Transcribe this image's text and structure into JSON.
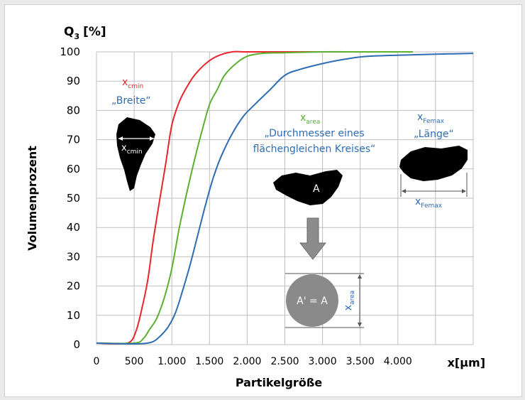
{
  "chart_data": {
    "type": "line",
    "ylabel": "Volumenprozent",
    "ylabel_top": "Q",
    "ylabel_top_sub": "3",
    "ylabel_top_unit": "[%]",
    "xlabel": "Partikelgröße",
    "xunit": "x[µm]",
    "xlim": [
      0,
      5000
    ],
    "ylim": [
      0,
      100
    ],
    "x_ticks": [
      0,
      500,
      1000,
      1500,
      2000,
      2500,
      3000,
      3500,
      4000
    ],
    "x_tick_labels": [
      "0",
      "500",
      "1.000",
      "1.500",
      "2.000",
      "2.500",
      "3.000",
      "3.500",
      "4.000"
    ],
    "y_ticks": [
      0,
      10,
      20,
      30,
      40,
      50,
      60,
      70,
      80,
      90,
      100
    ],
    "y_tick_labels": [
      "0",
      "10",
      "20",
      "30",
      "40",
      "50",
      "60",
      "70",
      "80",
      "90",
      "100"
    ],
    "grid": true,
    "series": [
      {
        "key": "xcmin",
        "color": "#e8262c",
        "points": [
          [
            0,
            0.5
          ],
          [
            300,
            0.3
          ],
          [
            450,
            1
          ],
          [
            530,
            5
          ],
          [
            600,
            12
          ],
          [
            680,
            22
          ],
          [
            750,
            35
          ],
          [
            830,
            48
          ],
          [
            920,
            62
          ],
          [
            1000,
            75
          ],
          [
            1100,
            83
          ],
          [
            1200,
            88
          ],
          [
            1300,
            92
          ],
          [
            1450,
            96
          ],
          [
            1600,
            98.5
          ],
          [
            1800,
            100
          ],
          [
            2000,
            100
          ],
          [
            2500,
            100
          ],
          [
            3000,
            100
          ],
          [
            3500,
            100
          ],
          [
            4200,
            100
          ]
        ]
      },
      {
        "key": "xarea",
        "color": "#5bb030",
        "points": [
          [
            0,
            0.5
          ],
          [
            500,
            0.5
          ],
          [
            620,
            2
          ],
          [
            700,
            5
          ],
          [
            800,
            9
          ],
          [
            900,
            16
          ],
          [
            1000,
            26
          ],
          [
            1100,
            40
          ],
          [
            1200,
            52
          ],
          [
            1300,
            63
          ],
          [
            1400,
            73
          ],
          [
            1500,
            82
          ],
          [
            1600,
            87
          ],
          [
            1700,
            92
          ],
          [
            1850,
            96
          ],
          [
            2000,
            98.5
          ],
          [
            2200,
            99.5
          ],
          [
            2500,
            99.7
          ],
          [
            3000,
            100
          ],
          [
            3500,
            100
          ],
          [
            4200,
            100
          ]
        ]
      },
      {
        "key": "xfemax",
        "color": "#2e6db4",
        "points": [
          [
            0,
            0.5
          ],
          [
            300,
            0.3
          ],
          [
            600,
            0.3
          ],
          [
            750,
            1
          ],
          [
            850,
            3
          ],
          [
            950,
            6
          ],
          [
            1050,
            11
          ],
          [
            1150,
            19
          ],
          [
            1250,
            28
          ],
          [
            1350,
            38
          ],
          [
            1450,
            48
          ],
          [
            1550,
            57
          ],
          [
            1650,
            64
          ],
          [
            1800,
            72
          ],
          [
            1950,
            78
          ],
          [
            2100,
            82
          ],
          [
            2300,
            87
          ],
          [
            2500,
            92
          ],
          [
            2700,
            94
          ],
          [
            3000,
            96
          ],
          [
            3300,
            97.5
          ],
          [
            3600,
            98.5
          ],
          [
            4200,
            99
          ],
          [
            5000,
            99.5
          ]
        ]
      }
    ]
  },
  "annotations": {
    "xcmin_label": {
      "main": "x",
      "sub": "cmin",
      "color": "#e8262c"
    },
    "breite": {
      "text": "„Breite“",
      "color": "#2e6db4"
    },
    "particle1_label": {
      "main": "x",
      "sub": "cmin"
    },
    "xarea_label": {
      "main": "x",
      "sub": "area",
      "color": "#5bb030"
    },
    "durchmesser_line1": "„Durchmesser eines",
    "durchmesser_line2": "flächengleichen Kreises“",
    "durchmesser_color": "#2e6db4",
    "particle2_label": "A",
    "circle_label": "A' = A",
    "xarea_side": {
      "main": "x",
      "sub": "area",
      "color": "#2e6db4"
    },
    "xfemax_label": {
      "main": "x",
      "sub": "Femax",
      "color": "#2e6db4"
    },
    "laenge": "„Länge“",
    "xfemax_bottom": {
      "main": "x",
      "sub": "Femax",
      "color": "#2e6db4"
    }
  }
}
